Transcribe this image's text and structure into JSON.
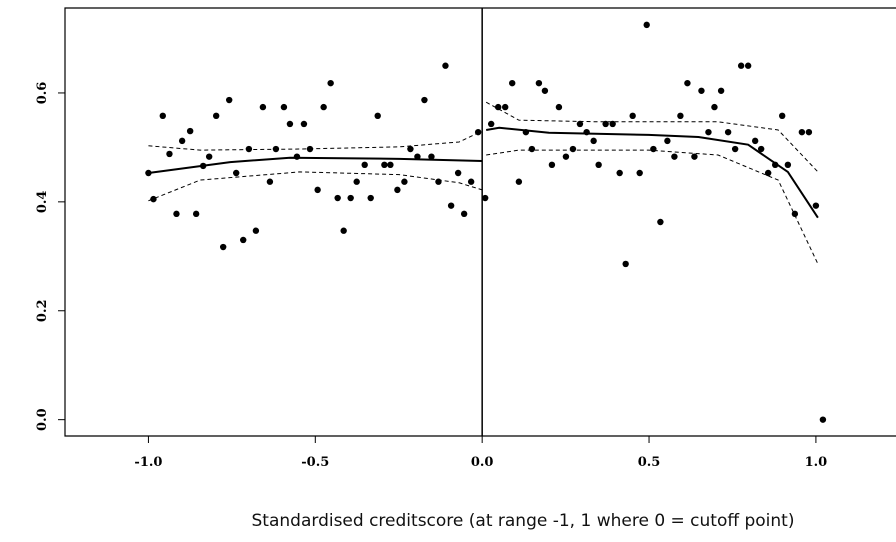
{
  "chart_data": {
    "type": "scatter",
    "x_label": "Standardised creditscore (at range -1, 1 where 0 = cutoff point)",
    "xlim": [
      -1.25,
      1.24
    ],
    "ylim": [
      -0.03,
      0.756
    ],
    "xticks": [
      {
        "value": -1,
        "label": "-1.0"
      },
      -0.5,
      {
        "value": 0,
        "label": "0.0"
      },
      0.5,
      {
        "value": 1,
        "label": "1.0"
      }
    ],
    "yticks": [
      {
        "value": 0,
        "label": "0.0"
      },
      0.2,
      0.4,
      0.6
    ],
    "vline": 0,
    "color": "#000000",
    "series": [
      {
        "x": [
          -1.0,
          -0.985,
          -0.957,
          -0.937,
          -0.916,
          -0.899,
          -0.875,
          -0.857,
          -0.836,
          -0.818,
          -0.797,
          -0.776,
          -0.758,
          -0.737,
          -0.716,
          -0.699,
          -0.678,
          -0.657,
          -0.636,
          -0.618,
          -0.594,
          -0.576,
          -0.555,
          -0.534,
          -0.516,
          -0.493,
          -0.475,
          -0.454,
          -0.433,
          -0.415,
          -0.394,
          -0.376,
          -0.352,
          -0.334,
          -0.313,
          -0.293,
          -0.275,
          -0.254,
          -0.233,
          -0.215,
          -0.194,
          -0.173,
          -0.152,
          -0.131,
          -0.11,
          -0.093,
          -0.072,
          -0.054,
          -0.033,
          -0.012,
          0.009,
          0.027,
          0.048,
          0.069,
          0.09,
          0.11,
          0.131,
          0.149,
          0.17,
          0.188,
          0.209,
          0.23,
          0.251,
          0.272,
          0.293,
          0.313,
          0.334,
          0.349,
          0.37,
          0.391,
          0.412,
          0.43,
          0.451,
          0.472,
          0.493,
          0.513,
          0.534,
          0.555,
          0.576,
          0.594,
          0.615,
          0.636,
          0.657,
          0.678,
          0.696,
          0.716,
          0.737,
          0.758,
          0.776,
          0.797,
          0.818,
          0.836,
          0.857,
          0.878,
          0.899,
          0.916,
          0.937,
          0.958,
          0.979,
          1.0,
          1.021
        ],
        "values": [
          0.453,
          0.405,
          0.558,
          0.488,
          0.378,
          0.512,
          0.53,
          0.378,
          0.466,
          0.483,
          0.558,
          0.317,
          0.587,
          0.453,
          0.33,
          0.497,
          0.347,
          0.574,
          0.437,
          0.497,
          0.574,
          0.543,
          0.483,
          0.543,
          0.497,
          0.422,
          0.574,
          0.618,
          0.407,
          0.347,
          0.407,
          0.437,
          0.468,
          0.407,
          0.558,
          0.468,
          0.468,
          0.422,
          0.437,
          0.497,
          0.483,
          0.587,
          0.483,
          0.437,
          0.65,
          0.393,
          0.453,
          0.378,
          0.437,
          0.528,
          0.407,
          0.543,
          0.574,
          0.574,
          0.618,
          0.437,
          0.528,
          0.497,
          0.618,
          0.604,
          0.468,
          0.574,
          0.483,
          0.497,
          0.543,
          0.528,
          0.512,
          0.468,
          0.543,
          0.543,
          0.453,
          0.286,
          0.558,
          0.453,
          0.725,
          0.497,
          0.363,
          0.512,
          0.483,
          0.558,
          0.618,
          0.483,
          0.604,
          0.528,
          0.574,
          0.604,
          0.528,
          0.497,
          0.65,
          0.65,
          0.512,
          0.497,
          0.453,
          0.468,
          0.558,
          0.468,
          0.378,
          0.528,
          0.528,
          0.393,
          0.0
        ]
      }
    ],
    "fits": [
      {
        "x": [
          -1.0,
          -0.755,
          -0.576,
          -0.248,
          0.0
        ],
        "values": [
          0.453,
          0.473,
          0.481,
          0.479,
          0.475
        ],
        "dashed": false
      },
      {
        "x": [
          -1.0,
          -0.845,
          -0.546,
          -0.248,
          -0.069,
          0.0
        ],
        "values": [
          0.402,
          0.44,
          0.455,
          0.45,
          0.435,
          0.422
        ],
        "dashed": true
      },
      {
        "x": [
          -1.0,
          -0.845,
          -0.546,
          -0.248,
          -0.069,
          0.0
        ],
        "values": [
          0.503,
          0.495,
          0.497,
          0.501,
          0.51,
          0.53
        ],
        "dashed": true
      },
      {
        "x": [
          0.012,
          0.051,
          0.2,
          0.499,
          0.648,
          0.797,
          0.916,
          1.006
        ],
        "values": [
          0.532,
          0.536,
          0.527,
          0.523,
          0.519,
          0.505,
          0.455,
          0.371
        ],
        "dashed": false
      },
      {
        "x": [
          0.012,
          0.11,
          0.349,
          0.707,
          0.887,
          1.006
        ],
        "values": [
          0.583,
          0.55,
          0.547,
          0.547,
          0.532,
          0.455
        ],
        "dashed": true
      },
      {
        "x": [
          0.012,
          0.11,
          0.499,
          0.707,
          0.887,
          1.006
        ],
        "values": [
          0.486,
          0.495,
          0.495,
          0.486,
          0.44,
          0.286
        ],
        "dashed": true
      }
    ]
  }
}
